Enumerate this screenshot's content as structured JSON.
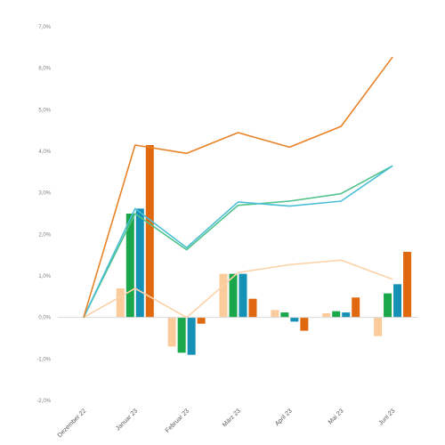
{
  "chart_data": {
    "type": "bar",
    "categories": [
      "Dezember 22",
      "Januar 23",
      "Februar 23",
      "März 23",
      "April 23",
      "Mai 23",
      "Juni 23"
    ],
    "ylim": [
      -2.0,
      7.0
    ],
    "ytick_step": 1.0,
    "ytick_labels": [
      "-2,0%",
      "-1,0%",
      "0,0%",
      "1,0%",
      "2,0%",
      "3,0%",
      "4,0%",
      "5,0%",
      "6,0%",
      "7,0%"
    ],
    "grid": false,
    "legend": "none",
    "bar_series": [
      {
        "color": "#fbcb9c",
        "values": [
          0,
          0.7,
          -0.7,
          1.05,
          0.18,
          0.1,
          -0.45
        ]
      },
      {
        "color": "#1aa64a",
        "values": [
          0,
          2.5,
          -0.85,
          1.05,
          0.12,
          0.15,
          0.58
        ]
      },
      {
        "color": "#1591b5",
        "values": [
          0,
          2.62,
          -0.9,
          1.05,
          -0.1,
          0.12,
          0.8
        ]
      },
      {
        "color": "#e0680f",
        "values": [
          0,
          4.15,
          -0.15,
          0.45,
          -0.32,
          0.48,
          1.58
        ]
      }
    ],
    "line_series": [
      {
        "color": "#fcd2a8",
        "values": [
          0,
          0.7,
          0.0,
          1.08,
          1.27,
          1.38,
          0.92
        ]
      },
      {
        "color": "#4fc28a",
        "values": [
          0,
          2.5,
          1.63,
          2.7,
          2.8,
          2.98,
          3.65
        ]
      },
      {
        "color": "#4bbfd6",
        "values": [
          0,
          2.62,
          1.68,
          2.78,
          2.68,
          2.8,
          3.65
        ]
      },
      {
        "color": "#e98227",
        "values": [
          0,
          4.15,
          3.95,
          4.45,
          4.1,
          4.6,
          6.27
        ]
      }
    ]
  }
}
